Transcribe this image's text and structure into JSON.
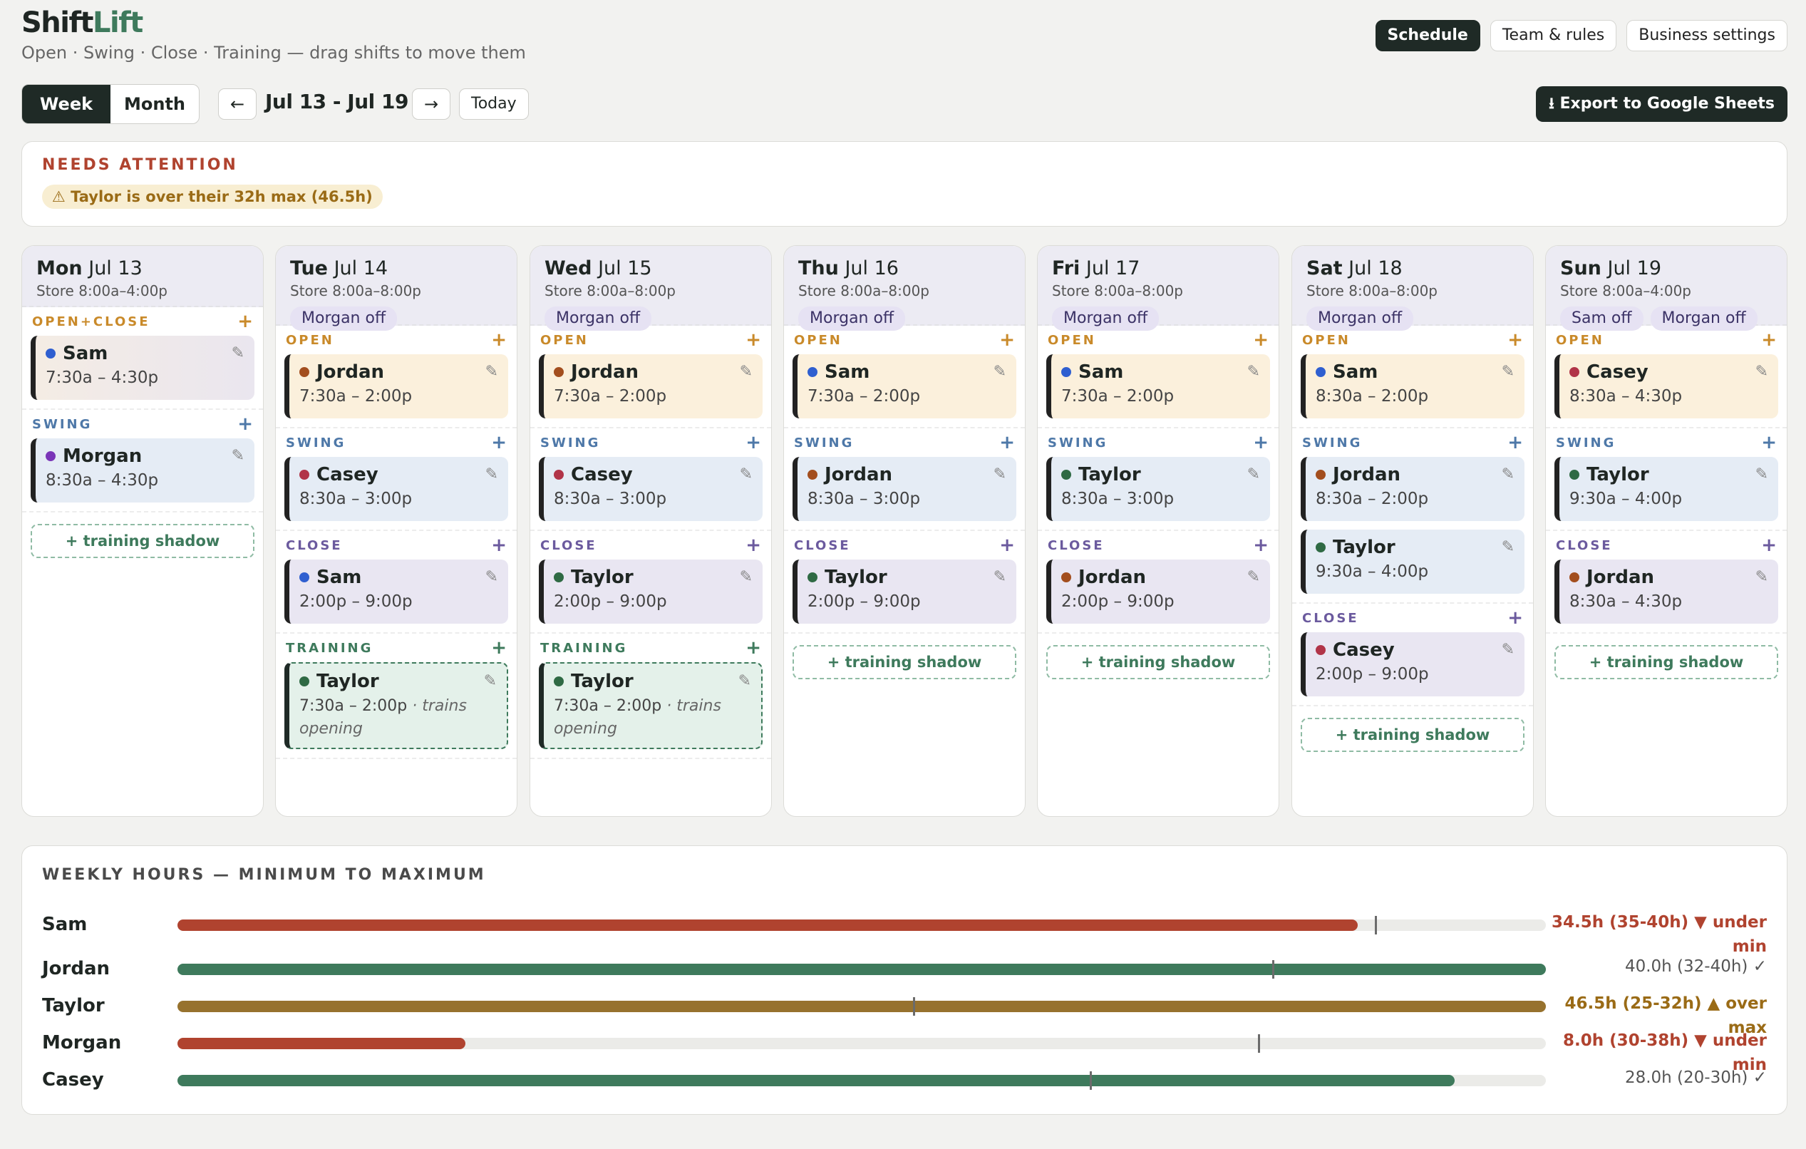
{
  "app": {
    "logo_a": "Shift",
    "logo_b": "Lift",
    "tagline": "Open · Swing · Close · Training — drag shifts to move them"
  },
  "topnav": [
    {
      "label": "Schedule",
      "active": true
    },
    {
      "label": "Team & rules",
      "active": false
    },
    {
      "label": "Business settings",
      "active": false
    }
  ],
  "toolbar": {
    "week": "Week",
    "month": "Month",
    "prev": "←",
    "next": "→",
    "range": "Jul 13 - Jul 19",
    "today": "Today",
    "export": "⭳ Export to Google Sheets"
  },
  "attention": {
    "title": "NEEDS ATTENTION",
    "items": [
      "⚠ Taylor is over their 32h max (46.5h)"
    ]
  },
  "colors": {
    "Sam": "#2f5fd0",
    "Jordan": "#a34e1e",
    "Casey": "#b13448",
    "Morgan": "#7a35b8",
    "Taylor": "#2f6a44"
  },
  "days": [
    {
      "dow": "Mon",
      "date": "Jul 13",
      "store": "Store 8:00a–4:00p",
      "off": [],
      "sections": [
        {
          "label": "OPEN+CLOSE",
          "kind": "open",
          "bg": "open2",
          "shifts": [
            {
              "name": "Sam",
              "time": "7:30a – 4:30p"
            }
          ]
        },
        {
          "label": "SWING",
          "kind": "swing",
          "shifts": [
            {
              "name": "Morgan",
              "time": "8:30a – 4:30p"
            }
          ]
        }
      ],
      "shadow": "+ training shadow"
    },
    {
      "dow": "Tue",
      "date": "Jul 14",
      "store": "Store 8:00a–8:00p",
      "off": [
        "Morgan off"
      ],
      "sections": [
        {
          "label": "OPEN",
          "kind": "open",
          "shifts": [
            {
              "name": "Jordan",
              "time": "7:30a – 2:00p"
            }
          ]
        },
        {
          "label": "SWING",
          "kind": "swing",
          "shifts": [
            {
              "name": "Casey",
              "time": "8:30a – 3:00p"
            }
          ]
        },
        {
          "label": "CLOSE",
          "kind": "close",
          "shifts": [
            {
              "name": "Sam",
              "time": "2:00p – 9:00p"
            }
          ]
        },
        {
          "label": "TRAINING",
          "kind": "train",
          "shifts": [
            {
              "name": "Taylor",
              "time": "7:30a – 2:00p",
              "note": "· trains opening"
            }
          ]
        }
      ],
      "shadow": ""
    },
    {
      "dow": "Wed",
      "date": "Jul 15",
      "store": "Store 8:00a–8:00p",
      "off": [
        "Morgan off"
      ],
      "sections": [
        {
          "label": "OPEN",
          "kind": "open",
          "shifts": [
            {
              "name": "Jordan",
              "time": "7:30a – 2:00p"
            }
          ]
        },
        {
          "label": "SWING",
          "kind": "swing",
          "shifts": [
            {
              "name": "Casey",
              "time": "8:30a – 3:00p"
            }
          ]
        },
        {
          "label": "CLOSE",
          "kind": "close",
          "shifts": [
            {
              "name": "Taylor",
              "time": "2:00p – 9:00p"
            }
          ]
        },
        {
          "label": "TRAINING",
          "kind": "train",
          "shifts": [
            {
              "name": "Taylor",
              "time": "7:30a – 2:00p",
              "note": "· trains opening"
            }
          ]
        }
      ],
      "shadow": ""
    },
    {
      "dow": "Thu",
      "date": "Jul 16",
      "store": "Store 8:00a–8:00p",
      "off": [
        "Morgan off"
      ],
      "sections": [
        {
          "label": "OPEN",
          "kind": "open",
          "shifts": [
            {
              "name": "Sam",
              "time": "7:30a – 2:00p"
            }
          ]
        },
        {
          "label": "SWING",
          "kind": "swing",
          "shifts": [
            {
              "name": "Jordan",
              "time": "8:30a – 3:00p"
            }
          ]
        },
        {
          "label": "CLOSE",
          "kind": "close",
          "shifts": [
            {
              "name": "Taylor",
              "time": "2:00p – 9:00p"
            }
          ]
        }
      ],
      "shadow": "+ training shadow"
    },
    {
      "dow": "Fri",
      "date": "Jul 17",
      "store": "Store 8:00a–8:00p",
      "off": [
        "Morgan off"
      ],
      "sections": [
        {
          "label": "OPEN",
          "kind": "open",
          "shifts": [
            {
              "name": "Sam",
              "time": "7:30a – 2:00p"
            }
          ]
        },
        {
          "label": "SWING",
          "kind": "swing",
          "shifts": [
            {
              "name": "Taylor",
              "time": "8:30a – 3:00p"
            }
          ]
        },
        {
          "label": "CLOSE",
          "kind": "close",
          "shifts": [
            {
              "name": "Jordan",
              "time": "2:00p – 9:00p"
            }
          ]
        }
      ],
      "shadow": "+ training shadow"
    },
    {
      "dow": "Sat",
      "date": "Jul 18",
      "store": "Store 8:00a–8:00p",
      "off": [
        "Morgan off"
      ],
      "sections": [
        {
          "label": "OPEN",
          "kind": "open",
          "shifts": [
            {
              "name": "Sam",
              "time": "8:30a – 2:00p"
            }
          ]
        },
        {
          "label": "SWING",
          "kind": "swing",
          "shifts": [
            {
              "name": "Jordan",
              "time": "8:30a – 2:00p"
            },
            {
              "name": "Taylor",
              "time": "9:30a – 4:00p"
            }
          ]
        },
        {
          "label": "CLOSE",
          "kind": "close",
          "shifts": [
            {
              "name": "Casey",
              "time": "2:00p – 9:00p"
            }
          ]
        }
      ],
      "shadow": "+ training shadow"
    },
    {
      "dow": "Sun",
      "date": "Jul 19",
      "store": "Store 8:00a–4:00p",
      "off": [
        "Sam off",
        "Morgan off"
      ],
      "sections": [
        {
          "label": "OPEN",
          "kind": "open",
          "shifts": [
            {
              "name": "Casey",
              "time": "8:30a – 4:30p"
            }
          ]
        },
        {
          "label": "SWING",
          "kind": "swing",
          "shifts": [
            {
              "name": "Taylor",
              "time": "9:30a – 4:00p"
            }
          ]
        },
        {
          "label": "CLOSE",
          "kind": "close",
          "shifts": [
            {
              "name": "Jordan",
              "time": "8:30a – 4:30p"
            }
          ]
        }
      ],
      "shadow": "+ training shadow"
    }
  ],
  "hours": {
    "title": "WEEKLY HOURS — MINIMUM TO MAXIMUM",
    "rows": [
      {
        "name": "Sam",
        "hours": 34.5,
        "min": 35,
        "max": 40,
        "status": "under",
        "label": "34.5h (35-40h) ▼ under min"
      },
      {
        "name": "Jordan",
        "hours": 40,
        "min": 32,
        "max": 40,
        "status": "ok",
        "label": "40.0h (32-40h) ✓"
      },
      {
        "name": "Taylor",
        "hours": 46.5,
        "min": 25,
        "max": 32,
        "status": "over",
        "label": "46.5h (25-32h) ▲ over max"
      },
      {
        "name": "Morgan",
        "hours": 8,
        "min": 30,
        "max": 38,
        "status": "under",
        "label": "8.0h (30-38h) ▼ under min"
      },
      {
        "name": "Casey",
        "hours": 28,
        "min": 20,
        "max": 30,
        "status": "ok",
        "label": "28.0h (20-30h) ✓"
      }
    ]
  }
}
